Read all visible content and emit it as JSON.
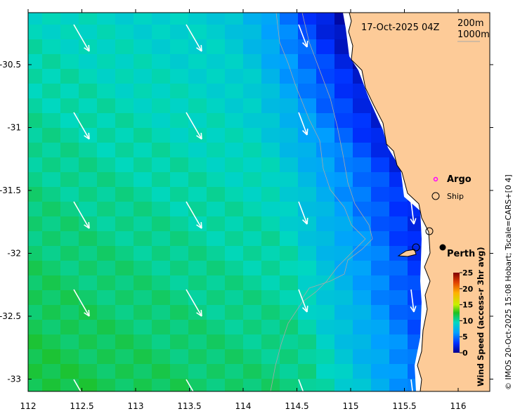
{
  "title": "17-Oct-2025 04Z",
  "contour_legend": [
    "200m",
    "1000m"
  ],
  "x_ticks": [
    "112",
    "112.5",
    "113",
    "113.5",
    "114",
    "114.5",
    "115",
    "115.5",
    "116"
  ],
  "x_tick_values": [
    112,
    112.5,
    113,
    113.5,
    114,
    114.5,
    115,
    115.5,
    116
  ],
  "y_ticks": [
    "-30.5",
    "-31",
    "-31.5",
    "-32",
    "-32.5",
    "-33"
  ],
  "y_tick_values": [
    -30.5,
    -31,
    -31.5,
    -32,
    -32.5,
    -33
  ],
  "legend": {
    "argo": "Argo",
    "ship": "Ship"
  },
  "city": "Perth",
  "colorbar": {
    "label": "Wind Speed (access-r 3hr avg)",
    "ticks": [
      "0",
      "5",
      "10",
      "15",
      "20",
      "25"
    ],
    "range": [
      0,
      25
    ]
  },
  "credit": "© IMOS 20-Oct-2025 15:08 Hobart; Tscale=CARS+[0 4]",
  "colors": {
    "land": "#fdcb98",
    "contour": "#a8a8a8",
    "argo": "#ff00ff"
  }
}
